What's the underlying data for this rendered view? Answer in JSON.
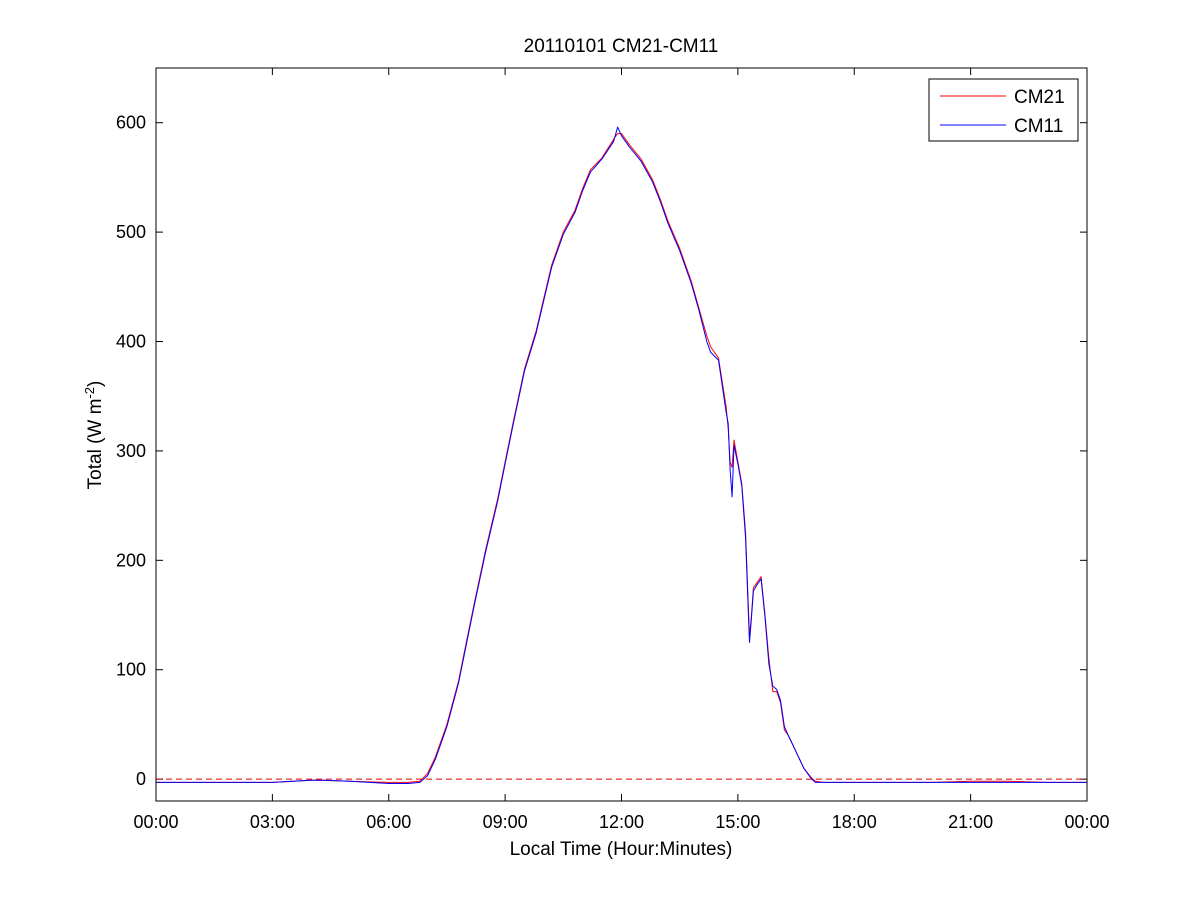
{
  "chart_data": {
    "type": "line",
    "title": "20110101 CM21-CM11",
    "xlabel": "Local Time (Hour:Minutes)",
    "ylabel_main": "Total (W m",
    "ylabel_sup": "-2",
    "ylabel_close": ")",
    "x_unit": "hours",
    "xlim": [
      0,
      24
    ],
    "ylim": [
      -20,
      650
    ],
    "x_ticks": [
      0,
      3,
      6,
      9,
      12,
      15,
      18,
      21,
      24
    ],
    "x_tick_labels": [
      "00:00",
      "03:00",
      "06:00",
      "09:00",
      "12:00",
      "15:00",
      "18:00",
      "21:00",
      "00:00"
    ],
    "y_ticks": [
      0,
      100,
      200,
      300,
      400,
      500,
      600
    ],
    "y_tick_labels": [
      "0",
      "100",
      "200",
      "300",
      "400",
      "500",
      "600"
    ],
    "grid": false,
    "legend_position": "top-right",
    "reference_line": {
      "y": 0,
      "style": "dashed",
      "color": "#e00000"
    },
    "series": [
      {
        "name": "CM21",
        "color": "#ff0000",
        "x": [
          0,
          1,
          2,
          3,
          4,
          4.3,
          5,
          6,
          6.5,
          6.8,
          7,
          7.2,
          7.5,
          7.8,
          8,
          8.2,
          8.5,
          8.8,
          9,
          9.2,
          9.5,
          9.8,
          10,
          10.2,
          10.5,
          10.8,
          11,
          11.2,
          11.5,
          11.8,
          11.9,
          12,
          12.2,
          12.5,
          12.8,
          13,
          13.2,
          13.5,
          13.8,
          14,
          14.2,
          14.3,
          14.5,
          14.7,
          14.75,
          14.8,
          14.85,
          14.9,
          15,
          15.1,
          15.2,
          15.25,
          15.3,
          15.35,
          15.4,
          15.5,
          15.6,
          15.7,
          15.8,
          15.9,
          16,
          16.1,
          16.2,
          16.3,
          16.5,
          16.7,
          16.9,
          17,
          17.2,
          17.5,
          18,
          19,
          20,
          21,
          22,
          23,
          24
        ],
        "y": [
          -3,
          -3,
          -3,
          -3,
          -1,
          -1,
          -2,
          -3,
          -3,
          -2,
          5,
          20,
          50,
          90,
          125,
          160,
          210,
          255,
          290,
          325,
          375,
          410,
          440,
          470,
          500,
          520,
          540,
          557,
          568,
          585,
          590,
          590,
          580,
          567,
          548,
          530,
          510,
          485,
          455,
          430,
          405,
          395,
          385,
          340,
          320,
          290,
          285,
          310,
          290,
          270,
          225,
          175,
          130,
          150,
          175,
          180,
          185,
          150,
          110,
          80,
          80,
          70,
          45,
          40,
          25,
          10,
          1,
          -2,
          -3,
          -3,
          -3,
          -3,
          -3,
          -2,
          -2,
          -3,
          -3
        ]
      },
      {
        "name": "CM11",
        "color": "#0000ff",
        "x": [
          0,
          1,
          2,
          3,
          4,
          4.3,
          5,
          6,
          6.5,
          6.8,
          7,
          7.2,
          7.5,
          7.8,
          8,
          8.2,
          8.5,
          8.8,
          9,
          9.2,
          9.5,
          9.8,
          10,
          10.2,
          10.5,
          10.8,
          11,
          11.2,
          11.5,
          11.8,
          11.9,
          12,
          12.2,
          12.5,
          12.8,
          13,
          13.2,
          13.5,
          13.8,
          14,
          14.2,
          14.3,
          14.5,
          14.7,
          14.75,
          14.8,
          14.85,
          14.9,
          15,
          15.1,
          15.2,
          15.25,
          15.3,
          15.35,
          15.4,
          15.5,
          15.6,
          15.7,
          15.8,
          15.9,
          16,
          16.1,
          16.2,
          16.3,
          16.5,
          16.7,
          16.9,
          17,
          17.2,
          17.5,
          18,
          19,
          20,
          21,
          22,
          23,
          24
        ],
        "y": [
          -3,
          -3,
          -3,
          -3,
          -1,
          -1,
          -2,
          -4,
          -4,
          -3,
          3,
          18,
          48,
          88,
          123,
          158,
          208,
          253,
          288,
          323,
          373,
          408,
          438,
          468,
          498,
          518,
          538,
          555,
          567,
          583,
          596,
          588,
          578,
          565,
          546,
          528,
          508,
          483,
          453,
          428,
          400,
          390,
          383,
          335,
          325,
          283,
          258,
          305,
          288,
          268,
          220,
          170,
          125,
          148,
          172,
          178,
          183,
          148,
          105,
          85,
          82,
          72,
          48,
          40,
          25,
          10,
          0,
          -3,
          -3,
          -3,
          -3,
          -3,
          -3,
          -3,
          -3,
          -3,
          -3
        ]
      }
    ]
  }
}
